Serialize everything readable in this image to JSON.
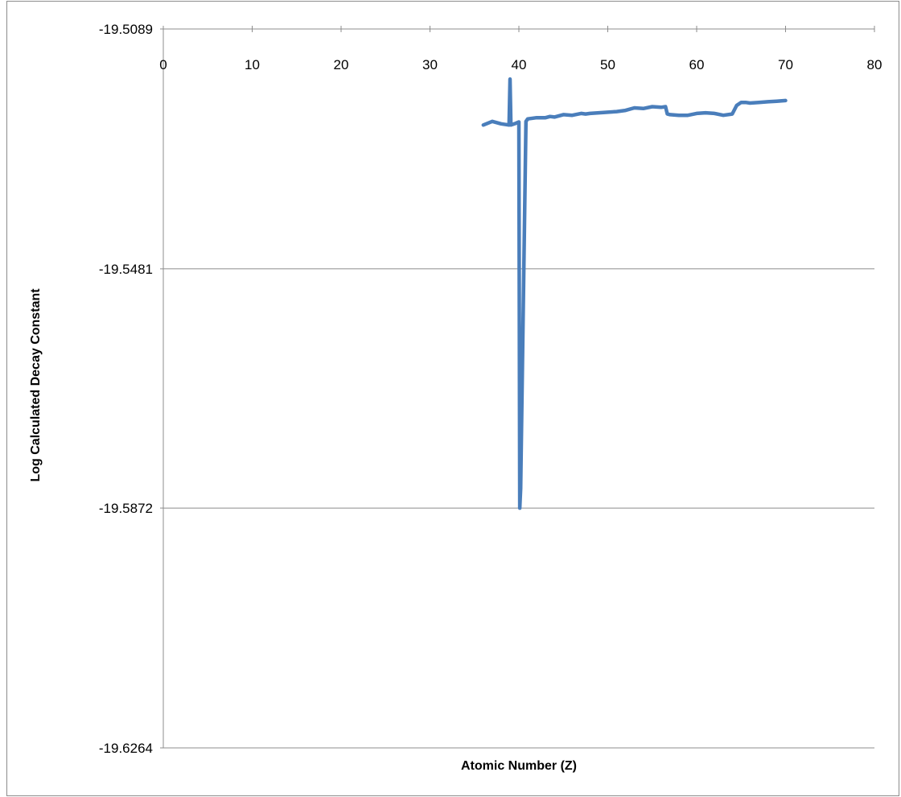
{
  "chart_data": {
    "type": "line",
    "title": "",
    "xlabel": "Atomic Number (Z)",
    "ylabel": "Log Calculated Decay Constant",
    "xlim": [
      0,
      80
    ],
    "ylim": [
      -19.6264,
      -19.5089
    ],
    "x_ticks": [
      0,
      10,
      20,
      30,
      40,
      50,
      60,
      70,
      80
    ],
    "x_tick_labels": [
      "0",
      "10",
      "20",
      "30",
      "40",
      "50",
      "60",
      "70",
      "80"
    ],
    "y_ticks": [
      -19.5089,
      -19.5481,
      -19.5872,
      -19.6264
    ],
    "y_tick_labels": [
      "-19.5089",
      "-19.5481",
      "-19.5872",
      "-19.6264"
    ],
    "x_axis_position": "top",
    "grid": "horizontal",
    "legend": "none",
    "series_color": "#4a7ebb",
    "series": [
      {
        "x": [
          36.0,
          37.0,
          38.0,
          38.9,
          39.0,
          39.1,
          39.5,
          40.0,
          40.1,
          40.2,
          40.8,
          41.0,
          42.0,
          43.0,
          43.5,
          44.0,
          45.0,
          46.0,
          47.0,
          47.5,
          48.0,
          49.0,
          50.0,
          51.0,
          52.0,
          53.0,
          54.0,
          55.0,
          56.0,
          56.5,
          56.7,
          57.0,
          58.0,
          59.0,
          60.0,
          61.0,
          62.0,
          63.0,
          64.0,
          64.5,
          65.0,
          65.5,
          66.0,
          67.0,
          68.0,
          69.0,
          70.0
        ],
        "y": [
          -19.5246,
          -19.524,
          -19.5244,
          -19.5246,
          -19.5171,
          -19.5246,
          -19.5244,
          -19.5241,
          -19.5872,
          -19.584,
          -19.524,
          -19.5236,
          -19.5234,
          -19.5234,
          -19.5232,
          -19.5233,
          -19.5229,
          -19.523,
          -19.5227,
          -19.5228,
          -19.5227,
          -19.5226,
          -19.5225,
          -19.5224,
          -19.5222,
          -19.5218,
          -19.5219,
          -19.5216,
          -19.5217,
          -19.5216,
          -19.5228,
          -19.5229,
          -19.523,
          -19.523,
          -19.5227,
          -19.5226,
          -19.5227,
          -19.523,
          -19.5228,
          -19.5214,
          -19.5209,
          -19.5209,
          -19.521,
          -19.5209,
          -19.5208,
          -19.5207,
          -19.5206
        ]
      }
    ]
  }
}
